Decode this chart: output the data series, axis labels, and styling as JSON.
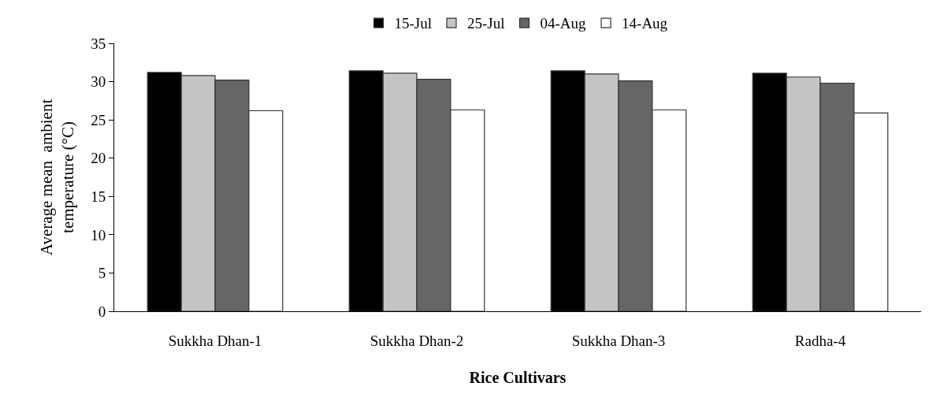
{
  "chart_data": {
    "type": "bar",
    "xlabel": "Rice Cultivars",
    "ylabel": "Average mean  ambient\ntemperature (°C)",
    "categories": [
      "Sukkha Dhan-1",
      "Sukkha Dhan-2",
      "Sukkha Dhan-3",
      "Radha-4"
    ],
    "series": [
      {
        "name": "15-Jul",
        "color": "#000000",
        "values": [
          31.2,
          31.4,
          31.4,
          31.1
        ]
      },
      {
        "name": "25-Jul",
        "color": "#c4c4c4",
        "values": [
          30.8,
          31.1,
          31.0,
          30.6
        ]
      },
      {
        "name": "04-Aug",
        "color": "#666666",
        "values": [
          30.2,
          30.3,
          30.1,
          29.8
        ]
      },
      {
        "name": "14-Aug",
        "color": "#ffffff",
        "values": [
          26.2,
          26.3,
          26.3,
          25.9
        ]
      }
    ],
    "ylim": [
      0,
      35
    ],
    "yticks": [
      0,
      5,
      10,
      15,
      20,
      25,
      30,
      35
    ],
    "grid": false,
    "legend": "top"
  }
}
